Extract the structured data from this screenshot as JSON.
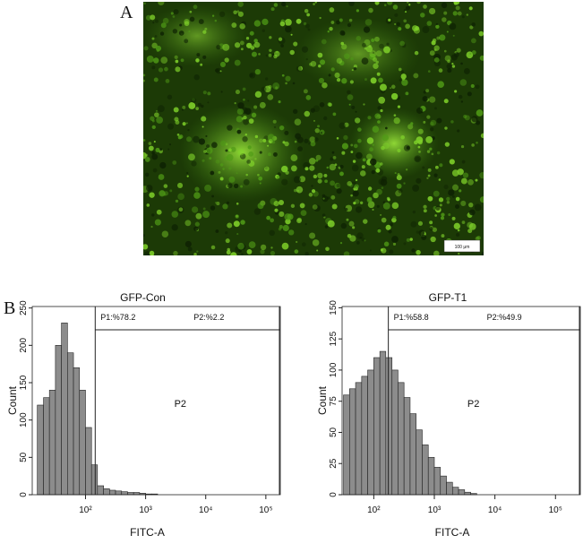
{
  "panel_labels": [
    "A",
    "B"
  ],
  "image": {
    "scale_bar": "100 μm"
  },
  "chart_data": [
    {
      "type": "histogram",
      "title": "GFP-Con",
      "x_label": "FITC-A",
      "y_label": "Count",
      "log_x": true,
      "color": "#8c8c8c",
      "xlim": [
        13,
        174000
      ],
      "xticks": [
        {
          "value": 100,
          "label": "10²"
        },
        {
          "value": 1000,
          "label": "10³"
        },
        {
          "value": 10000,
          "label": "10⁴"
        },
        {
          "value": 100000,
          "label": "10⁵"
        }
      ],
      "ylim": [
        0,
        252
      ],
      "yticks": [
        0,
        50,
        100,
        150,
        200,
        250
      ],
      "bins": [
        15.8,
        20,
        25.1,
        31.6,
        39.8,
        50.1,
        63.1,
        79.4,
        100,
        126,
        158,
        200,
        251,
        316,
        398,
        501,
        631,
        794,
        1000,
        1259,
        1585,
        1995,
        2512,
        3162,
        3981,
        5012,
        6310
      ],
      "values": [
        120,
        130,
        140,
        200,
        230,
        190,
        170,
        140,
        90,
        40,
        12,
        8,
        6,
        5,
        4,
        3,
        3,
        2,
        1,
        1,
        0,
        0,
        0,
        0,
        0,
        0
      ],
      "gate": 145,
      "gate_labels": [
        "P1:%78.2",
        "P2:%2.2"
      ],
      "region_label": "P2"
    },
    {
      "type": "histogram",
      "title": "GFP-T1",
      "x_label": "FITC-A",
      "y_label": "Count",
      "log_x": true,
      "color": "#8c8c8c",
      "xlim": [
        30,
        257000
      ],
      "xticks": [
        {
          "value": 100,
          "label": "10²"
        },
        {
          "value": 1000,
          "label": "10³"
        },
        {
          "value": 10000,
          "label": "10⁴"
        },
        {
          "value": 100000,
          "label": "10⁵"
        }
      ],
      "ylim": [
        0,
        151
      ],
      "yticks": [
        0,
        25,
        50,
        75,
        100,
        125,
        150
      ],
      "bins": [
        31.6,
        39.8,
        50.1,
        63.1,
        79.4,
        100,
        126,
        158,
        200,
        251,
        316,
        398,
        501,
        631,
        794,
        1000,
        1259,
        1585,
        1995,
        2512,
        3162,
        3981,
        5012,
        6310
      ],
      "values": [
        80,
        85,
        90,
        95,
        100,
        110,
        115,
        110,
        100,
        90,
        78,
        65,
        52,
        40,
        30,
        22,
        15,
        10,
        6,
        4,
        2,
        1,
        0
      ],
      "gate": 174,
      "gate_labels": [
        "P1:%58.8",
        "P2:%49.9"
      ],
      "region_label": "P2"
    }
  ]
}
